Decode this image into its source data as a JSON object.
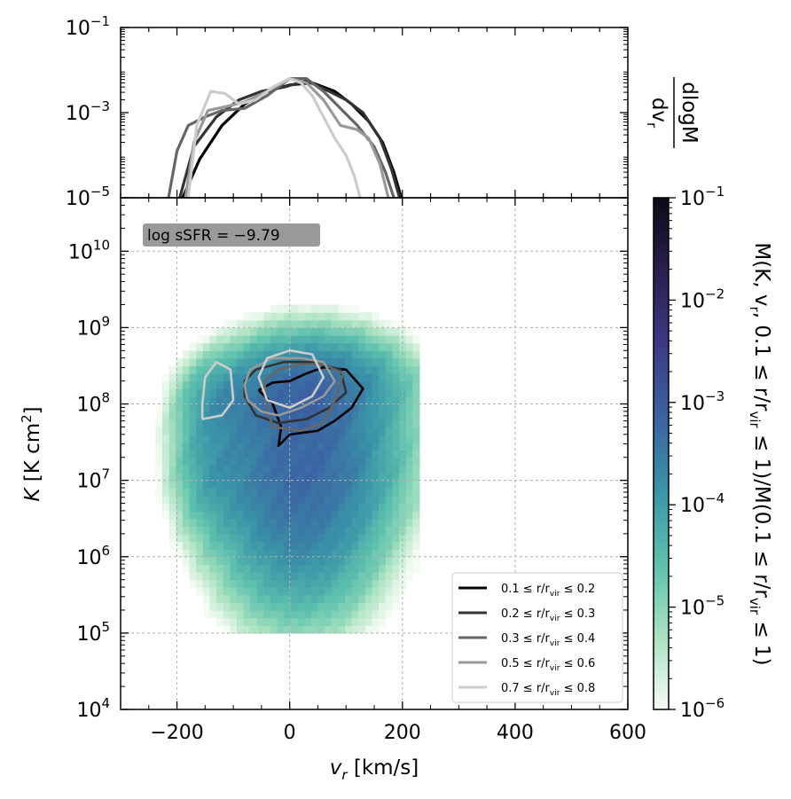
{
  "chart_data": [
    {
      "type": "line",
      "panel": "top",
      "ylabel": "dlogM / dv_r",
      "ylabel_num": "dlogM",
      "ylabel_den": "dv",
      "ylabel_den_sub": "r",
      "yscale": "log",
      "ylim_exp": [
        -5,
        -1
      ],
      "xlim": [
        -300,
        600
      ],
      "yticks": [
        {
          "base": "10",
          "exp": "−1",
          "e": -1
        },
        {
          "base": "10",
          "exp": "−3",
          "e": -3
        },
        {
          "base": "10",
          "exp": "−5",
          "e": -5
        }
      ],
      "series": [
        {
          "color": "#000000",
          "x": [
            -190,
            -160,
            -120,
            -80,
            -40,
            0,
            40,
            80,
            110,
            140,
            165,
            185,
            198
          ],
          "log_y": [
            -5.0,
            -4.1,
            -3.3,
            -2.8,
            -2.5,
            -2.35,
            -2.3,
            -2.5,
            -2.8,
            -3.2,
            -3.7,
            -4.4,
            -5.0
          ]
        },
        {
          "color": "#333333",
          "x": [
            -195,
            -170,
            -130,
            -90,
            -50,
            -10,
            30,
            70,
            100,
            130,
            160,
            180,
            195
          ],
          "log_y": [
            -5.0,
            -3.8,
            -3.1,
            -2.7,
            -2.5,
            -2.4,
            -2.25,
            -2.5,
            -2.7,
            -3.0,
            -3.6,
            -4.3,
            -5.0
          ]
        },
        {
          "color": "#666666",
          "x": [
            -215,
            -200,
            -180,
            -150,
            -120,
            -80,
            -40,
            0,
            30,
            60,
            90,
            120,
            150,
            170,
            185
          ],
          "log_y": [
            -5.0,
            -3.9,
            -3.3,
            -3.1,
            -2.95,
            -2.9,
            -2.6,
            -2.2,
            -2.2,
            -2.5,
            -2.9,
            -3.3,
            -3.8,
            -4.4,
            -5.0
          ]
        },
        {
          "color": "#999999",
          "x": [
            -185,
            -170,
            -145,
            -110,
            -80,
            -40,
            0,
            30,
            60,
            90,
            120,
            140,
            160,
            175
          ],
          "log_y": [
            -5.0,
            -3.7,
            -2.95,
            -2.85,
            -2.75,
            -2.5,
            -2.2,
            -2.3,
            -2.7,
            -3.3,
            -3.4,
            -3.6,
            -4.2,
            -5.0
          ]
        },
        {
          "color": "#cccccc",
          "x": [
            -180,
            -165,
            -140,
            -115,
            -90,
            -60,
            -30,
            0,
            20,
            40,
            60,
            80,
            100,
            115,
            125
          ],
          "log_y": [
            -5.0,
            -3.3,
            -2.5,
            -2.55,
            -2.8,
            -2.7,
            -2.4,
            -2.2,
            -2.3,
            -2.6,
            -3.1,
            -3.6,
            -4.0,
            -4.5,
            -5.0
          ]
        }
      ]
    },
    {
      "type": "heatmap",
      "panel": "main",
      "xlabel": "v_r [km/s]",
      "xlabel_main": "v",
      "xlabel_sub": "r",
      "xlabel_unit": " [km/s]",
      "ylabel": "K [K cm²]",
      "ylabel_main": "K",
      "ylabel_unit_a": " [K cm",
      "ylabel_unit_sup": "2",
      "ylabel_unit_b": "]",
      "xlim": [
        -300,
        600
      ],
      "xticks": [
        {
          "v": -200,
          "label": "−200"
        },
        {
          "v": 0,
          "label": "0"
        },
        {
          "v": 200,
          "label": "200"
        },
        {
          "v": 400,
          "label": "400"
        },
        {
          "v": 600,
          "label": "600"
        }
      ],
      "yscale": "log",
      "ylim_exp": [
        4,
        10.7
      ],
      "yticks": [
        {
          "base": "10",
          "exp": "10",
          "e": 10
        },
        {
          "base": "10",
          "exp": "9",
          "e": 9
        },
        {
          "base": "10",
          "exp": "8",
          "e": 8
        },
        {
          "base": "10",
          "exp": "7",
          "e": 7
        },
        {
          "base": "10",
          "exp": "6",
          "e": 6
        },
        {
          "base": "10",
          "exp": "5",
          "e": 5
        },
        {
          "base": "10",
          "exp": "4",
          "e": 4
        }
      ],
      "grid": true,
      "annotation": "log sSFR = −9.79",
      "colorbar": {
        "label": "M(K, v_r, 0.1 ≤ r/r_vir ≤ 1) / M(0.1 ≤ r/r_vir ≤ 1)",
        "label_text": "M(K, v",
        "label_text_sub": "r",
        "label_text_rest": ", 0.1 ≤ r/r",
        "label_text_sub2": "vir",
        "label_text_rest2": " ≤ 1)/M(0.1 ≤ r/r",
        "label_text_sub3": "vir",
        "label_text_rest3": " ≤ 1)",
        "scale": "log",
        "range_exp": [
          -6,
          -1
        ],
        "ticks": [
          {
            "base": "10",
            "exp": "−1",
            "e": -1
          },
          {
            "base": "10",
            "exp": "−2",
            "e": -2
          },
          {
            "base": "10",
            "exp": "−3",
            "e": -3
          },
          {
            "base": "10",
            "exp": "−4",
            "e": -4
          },
          {
            "base": "10",
            "exp": "−5",
            "e": -5
          },
          {
            "base": "10",
            "exp": "−6",
            "e": -6
          }
        ],
        "colors": [
          "#f6fcf4",
          "#a9e2c0",
          "#5cc0ad",
          "#3a94a8",
          "#3b62a3",
          "#3b3a87",
          "#2a1f4f",
          "#0d0916"
        ]
      },
      "density_model": {
        "blobs": [
          {
            "x": 0,
            "logK": 8.15,
            "sx": 70,
            "sk": 0.35,
            "amp": 1.3
          },
          {
            "x": -130,
            "logK": 8.05,
            "sx": 45,
            "sk": 0.3,
            "amp": 0.9
          },
          {
            "x": 30,
            "logK": 7.4,
            "sx": 110,
            "sk": 0.75,
            "amp": 1.6
          },
          {
            "x": 10,
            "logK": 6.1,
            "sx": 90,
            "sk": 0.9,
            "amp": 1.4
          },
          {
            "x": 90,
            "logK": 8.3,
            "sx": 90,
            "sk": 0.35,
            "amp": 1.0
          },
          {
            "x": -150,
            "logK": 7.2,
            "sx": 40,
            "sk": 0.6,
            "amp": 0.8
          }
        ],
        "floor_exp": -6.1,
        "peak_exp": -1.7
      },
      "contours": [
        {
          "label_pre": "0.1 ≤ r/r",
          "label_sub": "vir",
          "label_post": " ≤ 0.2",
          "color": "#000000",
          "points": [
            [
              -55,
              8.18
            ],
            [
              -30,
              8.0
            ],
            [
              -15,
              7.7
            ],
            [
              -20,
              7.45
            ],
            [
              0,
              7.6
            ],
            [
              50,
              7.65
            ],
            [
              80,
              7.78
            ],
            [
              110,
              7.95
            ],
            [
              130,
              8.2
            ],
            [
              100,
              8.45
            ],
            [
              60,
              8.48
            ],
            [
              30,
              8.4
            ],
            [
              0,
              8.3
            ],
            [
              -30,
              8.28
            ],
            [
              -55,
              8.18
            ]
          ]
        },
        {
          "label_pre": "0.2 ≤ r/r",
          "label_sub": "vir",
          "label_post": " ≤ 0.3",
          "color": "#333333",
          "points": [
            [
              -80,
              8.1
            ],
            [
              -60,
              7.85
            ],
            [
              -20,
              7.75
            ],
            [
              30,
              7.8
            ],
            [
              70,
              7.95
            ],
            [
              100,
              8.15
            ],
            [
              90,
              8.45
            ],
            [
              40,
              8.55
            ],
            [
              -10,
              8.55
            ],
            [
              -60,
              8.45
            ],
            [
              -80,
              8.3
            ],
            [
              -80,
              8.1
            ]
          ]
        },
        {
          "label_pre": "0.3 ≤ r/r",
          "label_sub": "vir",
          "label_post": " ≤ 0.4",
          "color": "#666666",
          "points": [
            [
              -40,
              7.95
            ],
            [
              -30,
              7.7
            ],
            [
              20,
              7.65
            ],
            [
              60,
              7.75
            ],
            [
              80,
              8.05
            ],
            [
              95,
              8.4
            ],
            [
              60,
              8.52
            ],
            [
              20,
              8.52
            ],
            [
              -20,
              8.45
            ],
            [
              -45,
              8.3
            ],
            [
              -40,
              7.95
            ]
          ]
        },
        {
          "label_pre": "0.5 ≤ r/r",
          "label_sub": "vir",
          "label_post": " ≤ 0.6",
          "color": "#999999",
          "points": [
            [
              -75,
              8.05
            ],
            [
              -50,
              7.9
            ],
            [
              -20,
              7.85
            ],
            [
              20,
              7.95
            ],
            [
              60,
              8.1
            ],
            [
              80,
              8.3
            ],
            [
              60,
              8.55
            ],
            [
              20,
              8.6
            ],
            [
              -30,
              8.6
            ],
            [
              -70,
              8.45
            ],
            [
              -80,
              8.25
            ],
            [
              -75,
              8.05
            ]
          ]
        },
        {
          "label_pre": "0.7 ≤ r/r",
          "label_sub": "vir",
          "label_post": " ≤ 0.8",
          "color": "#cccccc",
          "points": [
            [
              -155,
              7.8
            ],
            [
              -120,
              7.85
            ],
            [
              -100,
              8.05
            ],
            [
              -105,
              8.45
            ],
            [
              -130,
              8.55
            ],
            [
              -150,
              8.35
            ],
            [
              -155,
              8.0
            ],
            [
              -155,
              7.8
            ],
            [
              null,
              null
            ],
            [
              -40,
              8.05
            ],
            [
              0,
              7.95
            ],
            [
              40,
              8.1
            ],
            [
              60,
              8.35
            ],
            [
              40,
              8.65
            ],
            [
              0,
              8.7
            ],
            [
              -40,
              8.6
            ],
            [
              -55,
              8.35
            ],
            [
              -40,
              8.05
            ]
          ]
        }
      ]
    }
  ]
}
